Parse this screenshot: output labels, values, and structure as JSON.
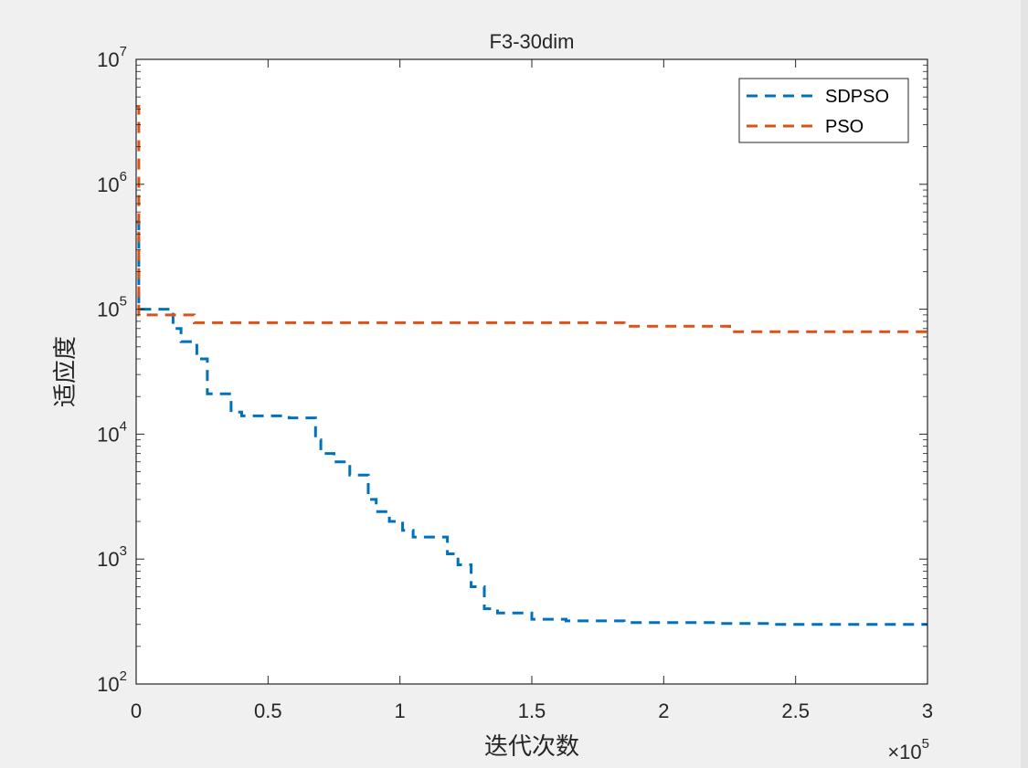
{
  "chart_data": {
    "type": "line",
    "title": "F3-30dim",
    "xlabel": "迭代次数",
    "ylabel": "适应度",
    "x_multiplier": "×10",
    "x_multiplier_exp": "5",
    "xlim": [
      0,
      300000
    ],
    "ylim": [
      100,
      10000000
    ],
    "y_scale": "log",
    "x_ticks": [
      0,
      50000,
      100000,
      150000,
      200000,
      250000,
      300000
    ],
    "x_tick_labels": [
      "0",
      "0.5",
      "1",
      "1.5",
      "2",
      "2.5",
      "3"
    ],
    "y_ticks": [
      100,
      1000,
      10000,
      100000,
      1000000,
      10000000
    ],
    "y_tick_labels": [
      {
        "base": "10",
        "exp": "2"
      },
      {
        "base": "10",
        "exp": "3"
      },
      {
        "base": "10",
        "exp": "4"
      },
      {
        "base": "10",
        "exp": "5"
      },
      {
        "base": "10",
        "exp": "6"
      },
      {
        "base": "10",
        "exp": "7"
      }
    ],
    "grid": false,
    "legend": "top-right",
    "series": [
      {
        "name": "SDPSO",
        "color": "#0072BD",
        "style": "dashed",
        "x": [
          0,
          1000,
          1000,
          2000,
          2000,
          14000,
          14000,
          17000,
          17000,
          23000,
          23000,
          27000,
          27000,
          36000,
          36000,
          40000,
          40000,
          58000,
          58000,
          68000,
          68000,
          70000,
          70000,
          75000,
          75000,
          81000,
          81000,
          88000,
          88000,
          91000,
          91000,
          96000,
          96000,
          101000,
          101000,
          105000,
          105000,
          118000,
          118000,
          122000,
          122000,
          127000,
          127000,
          132000,
          132000,
          137000,
          137000,
          150000,
          150000,
          163000,
          163000,
          185000,
          185000,
          220000,
          220000,
          240000,
          240000,
          300000
        ],
        "y": [
          500000,
          500000,
          100000,
          100000,
          100000,
          100000,
          70000,
          70000,
          55000,
          55000,
          40000,
          40000,
          21000,
          21000,
          15000,
          15000,
          14000,
          14000,
          13500,
          13500,
          9000,
          9000,
          7000,
          7000,
          6000,
          6000,
          4700,
          4700,
          3000,
          3000,
          2400,
          2400,
          2000,
          2000,
          1700,
          1700,
          1500,
          1500,
          1100,
          1100,
          900,
          900,
          600,
          600,
          400,
          400,
          370,
          370,
          330,
          330,
          320,
          320,
          310,
          310,
          305,
          305,
          300,
          300
        ]
      },
      {
        "name": "PSO",
        "color": "#D95319",
        "style": "dashed",
        "x": [
          0,
          1000,
          1000,
          22000,
          22000,
          185000,
          185000,
          225000,
          225000,
          300000
        ],
        "y": [
          4200000,
          4200000,
          90000,
          90000,
          78000,
          78000,
          73000,
          73000,
          66000,
          66000
        ]
      }
    ]
  }
}
